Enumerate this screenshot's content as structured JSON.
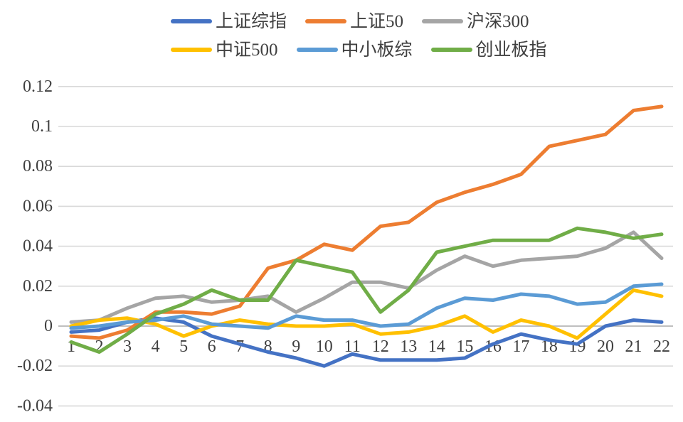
{
  "chart_data": {
    "type": "line",
    "title": "",
    "xlabel": "",
    "ylabel": "",
    "x": [
      1,
      2,
      3,
      4,
      5,
      6,
      7,
      8,
      9,
      10,
      11,
      12,
      13,
      14,
      15,
      16,
      17,
      18,
      19,
      20,
      21,
      22
    ],
    "x_tick_labels": [
      "1",
      "2",
      "3",
      "4",
      "5",
      "6",
      "7",
      "8",
      "9",
      "10",
      "11",
      "12",
      "13",
      "14",
      "15",
      "16",
      "17",
      "18",
      "19",
      "20",
      "21",
      "22"
    ],
    "ylim": [
      -0.04,
      0.12
    ],
    "y_ticks": [
      0.12,
      0.1,
      0.08,
      0.06,
      0.04,
      0.02,
      0,
      -0.02,
      -0.04
    ],
    "y_tick_labels": [
      "0.12",
      "0.1",
      "0.08",
      "0.06",
      "0.04",
      "0.02",
      "0",
      "-0.02",
      "-0.04"
    ],
    "grid": true,
    "legend_position": "top",
    "legend_rows": [
      [
        0,
        1,
        2
      ],
      [
        3,
        4,
        5
      ]
    ],
    "series": [
      {
        "name": "上证综指",
        "color": "#4472C4",
        "values": [
          -0.003,
          -0.002,
          0.002,
          0.004,
          0.002,
          -0.005,
          -0.009,
          -0.013,
          -0.016,
          -0.02,
          -0.014,
          -0.017,
          -0.017,
          -0.017,
          -0.016,
          -0.009,
          -0.004,
          -0.007,
          -0.009,
          0.0,
          0.003,
          0.002
        ]
      },
      {
        "name": "上证50",
        "color": "#ED7D31",
        "values": [
          -0.005,
          -0.006,
          -0.002,
          0.007,
          0.007,
          0.006,
          0.01,
          0.029,
          0.033,
          0.041,
          0.038,
          0.05,
          0.052,
          0.062,
          0.067,
          0.071,
          0.076,
          0.09,
          0.093,
          0.096,
          0.108,
          0.11
        ]
      },
      {
        "name": "沪深300",
        "color": "#A5A5A5",
        "values": [
          0.002,
          0.003,
          0.009,
          0.014,
          0.015,
          0.012,
          0.013,
          0.015,
          0.007,
          0.014,
          0.022,
          0.022,
          0.019,
          0.028,
          0.035,
          0.03,
          0.033,
          0.034,
          0.035,
          0.039,
          0.047,
          0.034
        ]
      },
      {
        "name": "中证500",
        "color": "#FFC000",
        "values": [
          0.0,
          0.003,
          0.004,
          0.001,
          -0.005,
          0.0,
          0.003,
          0.001,
          0.0,
          0.0,
          0.001,
          -0.004,
          -0.003,
          0.0,
          0.005,
          -0.003,
          0.003,
          0.0,
          -0.006,
          0.006,
          0.018,
          0.015
        ]
      },
      {
        "name": "中小板综",
        "color": "#5B9BD5",
        "values": [
          -0.001,
          0.0,
          0.002,
          0.003,
          0.005,
          0.001,
          0.0,
          -0.001,
          0.005,
          0.003,
          0.003,
          0.0,
          0.001,
          0.009,
          0.014,
          0.013,
          0.016,
          0.015,
          0.011,
          0.012,
          0.02,
          0.021
        ]
      },
      {
        "name": "创业板指",
        "color": "#70AD47",
        "values": [
          -0.008,
          -0.013,
          -0.004,
          0.006,
          0.011,
          0.018,
          0.013,
          0.013,
          0.033,
          0.03,
          0.027,
          0.007,
          0.018,
          0.037,
          0.04,
          0.043,
          0.043,
          0.043,
          0.049,
          0.047,
          0.044,
          0.046
        ]
      }
    ],
    "style": {
      "gridline_color": "#D9D9D9",
      "zero_axis_color": "#BFBFBF",
      "tick_label_color": "#404040",
      "line_width": 5
    }
  }
}
